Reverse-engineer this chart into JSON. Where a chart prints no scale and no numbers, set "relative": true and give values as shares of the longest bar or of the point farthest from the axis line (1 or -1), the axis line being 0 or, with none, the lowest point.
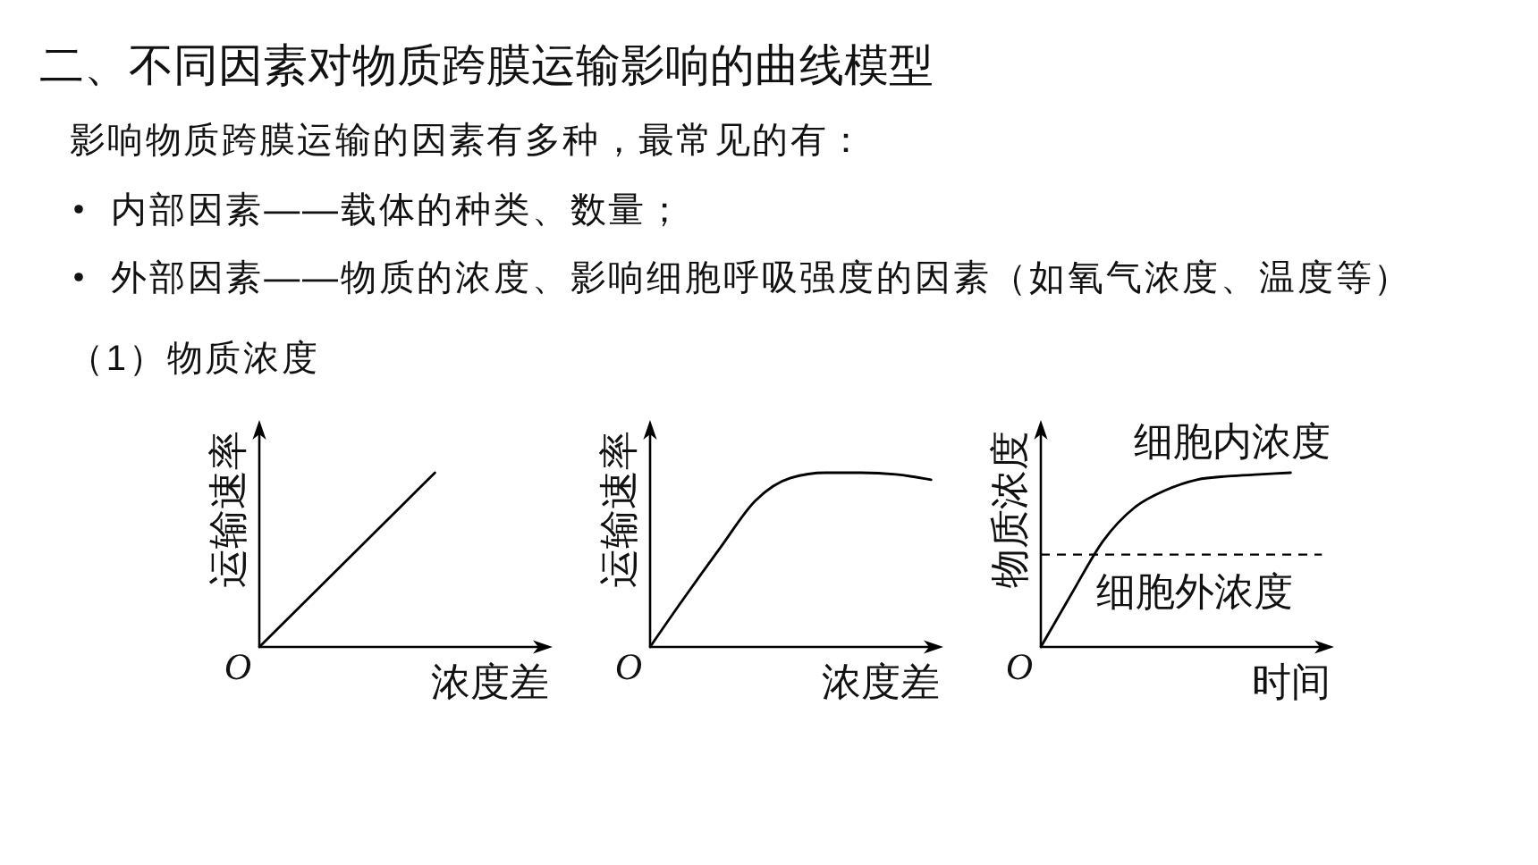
{
  "chart_data": [
    {
      "type": "other",
      "title": "二、不同因素对物质跨膜运输影响的曲线模型",
      "subtitle": "影响物质跨膜运输的因素有多种，最常见的有：",
      "annotations": [
        "内部因素——载体的种类、数量；",
        "外部因素——物质的浓度、影响细胞呼吸强度的因素（如氧气浓度、温度等）",
        "（1）物质浓度"
      ]
    },
    {
      "type": "line",
      "relative": true,
      "xlabel": "浓度差",
      "ylabel": "运输速率",
      "annotations": [
        "O"
      ],
      "categories": [
        null,
        null,
        null,
        null,
        null,
        null,
        null,
        null,
        null
      ],
      "series": [
        {
          "color": "#000000",
          "values": [
            0,
            0.2,
            0.4,
            0.6,
            0.8,
            1,
            null,
            null,
            null
          ]
        }
      ]
    },
    {
      "type": "line",
      "relative": true,
      "xlabel": "浓度差",
      "ylabel": "运输速率",
      "annotations": [
        "O"
      ],
      "categories": [
        null,
        null,
        null,
        null,
        null,
        null,
        null,
        null,
        null
      ],
      "series": [
        {
          "color": "#000000",
          "values": [
            0,
            0.29,
            0.57,
            0.84,
            0.97,
            1,
            1,
            0.99,
            0.96
          ]
        }
      ]
    },
    {
      "type": "line",
      "relative": true,
      "xlabel": "时间",
      "ylabel": "物质浓度",
      "annotations": [
        "O"
      ],
      "categories": [
        null,
        null,
        null,
        null,
        null,
        null,
        null,
        null,
        null,
        null
      ],
      "series": [
        {
          "name": "细胞内浓度",
          "color": "#000000",
          "values": [
            0,
            0.31,
            0.61,
            0.8,
            0.9,
            0.96,
            0.98,
            0.99,
            1,
            null
          ]
        }
      ],
      "ref_lines": [
        {
          "axis": "y",
          "value": 0.53,
          "label": "细胞外浓度",
          "line_style": "dashed",
          "color": "#000000"
        }
      ]
    }
  ]
}
